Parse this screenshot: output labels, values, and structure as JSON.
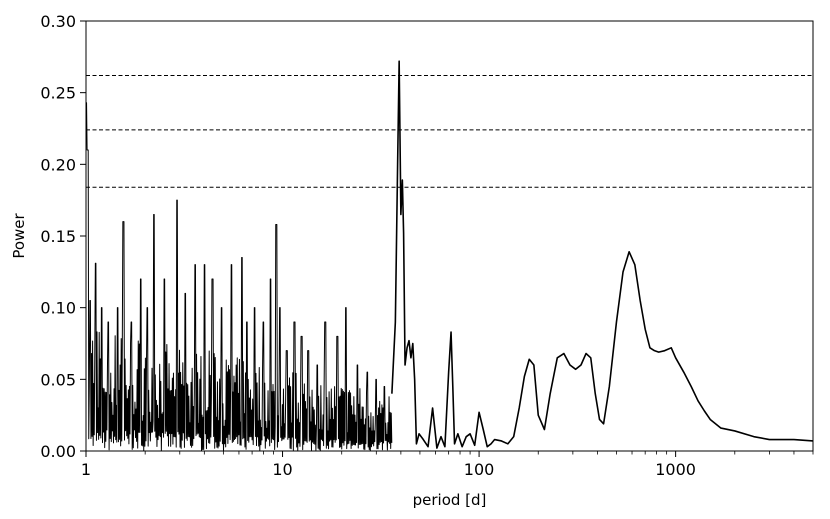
{
  "chart_data": {
    "type": "line",
    "title": "",
    "xlabel": "period [d]",
    "ylabel": "Power",
    "x_scale": "log",
    "xlim": [
      1,
      5000
    ],
    "ylim": [
      0,
      0.3
    ],
    "grid": false,
    "legend": "none",
    "x_ticks": [
      {
        "value": 1,
        "label": "1"
      },
      {
        "value": 10,
        "label": "10"
      },
      {
        "value": 100,
        "label": "100"
      },
      {
        "value": 1000,
        "label": "1000"
      }
    ],
    "y_ticks": [
      {
        "value": 0.0,
        "label": "0.00"
      },
      {
        "value": 0.05,
        "label": "0.05"
      },
      {
        "value": 0.1,
        "label": "0.10"
      },
      {
        "value": 0.15,
        "label": "0.15"
      },
      {
        "value": 0.2,
        "label": "0.20"
      },
      {
        "value": 0.25,
        "label": "0.25"
      },
      {
        "value": 0.3,
        "label": "0.30"
      }
    ],
    "threshold_lines": [
      0.262,
      0.224,
      0.184
    ],
    "noise_region": {
      "x_start": 1,
      "x_end": 36,
      "baseline_max": 0.09,
      "seed": 7
    },
    "noise_peaks": [
      [
        1.0,
        0.243
      ],
      [
        1.02,
        0.21
      ],
      [
        1.05,
        0.105
      ],
      [
        1.12,
        0.131
      ],
      [
        1.2,
        0.1
      ],
      [
        1.3,
        0.09
      ],
      [
        1.45,
        0.1
      ],
      [
        1.55,
        0.16
      ],
      [
        1.7,
        0.09
      ],
      [
        1.9,
        0.12
      ],
      [
        2.05,
        0.1
      ],
      [
        2.22,
        0.165
      ],
      [
        2.5,
        0.12
      ],
      [
        2.9,
        0.175
      ],
      [
        3.2,
        0.11
      ],
      [
        3.6,
        0.13
      ],
      [
        4.0,
        0.13
      ],
      [
        4.4,
        0.12
      ],
      [
        4.9,
        0.1
      ],
      [
        5.5,
        0.13
      ],
      [
        6.2,
        0.135
      ],
      [
        6.6,
        0.09
      ],
      [
        7.2,
        0.1
      ],
      [
        8.0,
        0.09
      ],
      [
        8.7,
        0.12
      ],
      [
        9.3,
        0.158
      ],
      [
        9.7,
        0.1
      ],
      [
        10.5,
        0.07
      ],
      [
        11.5,
        0.09
      ],
      [
        12.5,
        0.08
      ],
      [
        13.5,
        0.07
      ],
      [
        15.0,
        0.06
      ],
      [
        16.5,
        0.09
      ],
      [
        19.0,
        0.08
      ],
      [
        21.0,
        0.1
      ],
      [
        24.0,
        0.06
      ],
      [
        27.0,
        0.055
      ],
      [
        30.0,
        0.05
      ],
      [
        33.0,
        0.045
      ]
    ],
    "series": [
      {
        "x": [
          36,
          37.5,
          38.5,
          39.2,
          40.0,
          40.7,
          41.3,
          42.0,
          43.0,
          44.0,
          45.0,
          46.0,
          47.0,
          48.0,
          49.5,
          52,
          55,
          58,
          61,
          64,
          67,
          70,
          72,
          73.5,
          75,
          78,
          82,
          86,
          90,
          95,
          100,
          105,
          110,
          115,
          120,
          130,
          140,
          150,
          160,
          170,
          180,
          190,
          200,
          215,
          230,
          250,
          270,
          290,
          310,
          330,
          350,
          370,
          390,
          410,
          430,
          460,
          500,
          540,
          580,
          620,
          660,
          700,
          740,
          780,
          820,
          880,
          950,
          1000,
          1100,
          1200,
          1300,
          1400,
          1500,
          1700,
          2000,
          2500,
          3000,
          4000,
          5000
        ],
        "y": [
          0.04,
          0.09,
          0.2,
          0.272,
          0.165,
          0.189,
          0.152,
          0.06,
          0.072,
          0.077,
          0.065,
          0.075,
          0.05,
          0.005,
          0.012,
          0.008,
          0.003,
          0.03,
          0.002,
          0.01,
          0.003,
          0.055,
          0.083,
          0.045,
          0.005,
          0.012,
          0.003,
          0.01,
          0.012,
          0.004,
          0.027,
          0.015,
          0.003,
          0.005,
          0.008,
          0.007,
          0.005,
          0.01,
          0.03,
          0.052,
          0.064,
          0.06,
          0.025,
          0.015,
          0.04,
          0.065,
          0.068,
          0.06,
          0.057,
          0.06,
          0.068,
          0.065,
          0.04,
          0.022,
          0.019,
          0.045,
          0.09,
          0.125,
          0.139,
          0.13,
          0.105,
          0.085,
          0.072,
          0.07,
          0.069,
          0.07,
          0.072,
          0.065,
          0.055,
          0.045,
          0.035,
          0.028,
          0.022,
          0.016,
          0.014,
          0.01,
          0.008,
          0.008,
          0.007
        ]
      }
    ]
  }
}
